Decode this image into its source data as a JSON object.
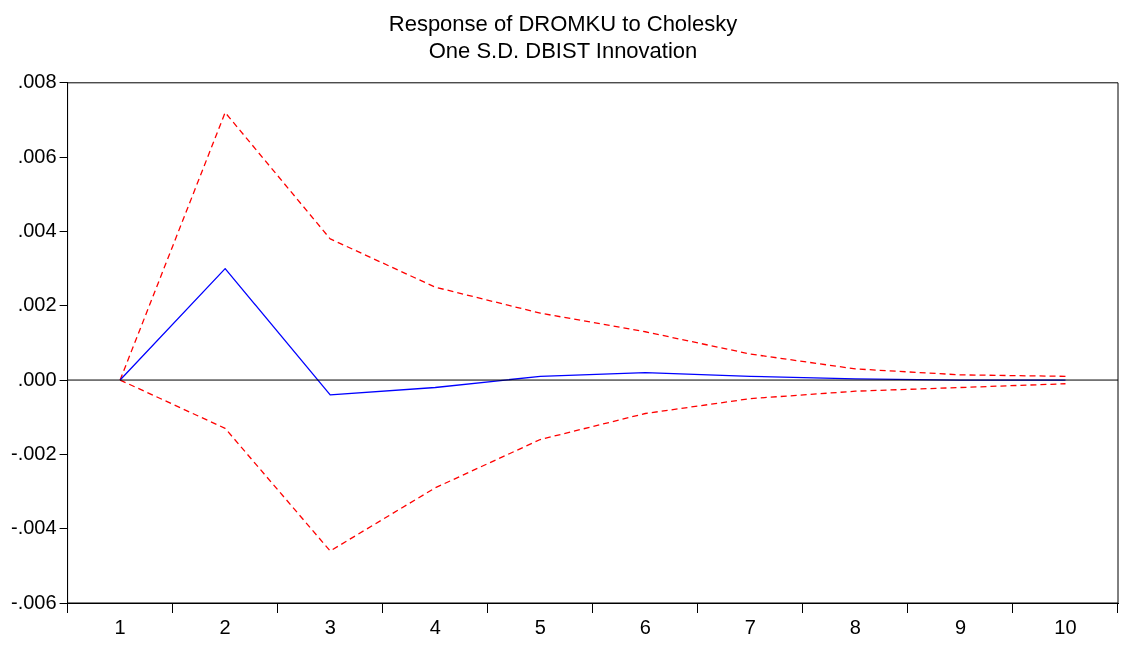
{
  "chart_data": {
    "type": "line",
    "title": "Response of DROMKU to Cholesky\nOne S.D. DBIST Innovation",
    "categories": [
      "1",
      "2",
      "3",
      "4",
      "5",
      "6",
      "7",
      "8",
      "9",
      "10"
    ],
    "series": [
      {
        "color": "#0000ff",
        "line_style": "solid",
        "values": [
          0,
          0.003,
          -0.0004,
          -0.0002,
          0.0001,
          0.0002,
          0.0001,
          3e-05,
          0,
          0
        ]
      },
      {
        "color": "#ff0000",
        "line_style": "dashed",
        "values": [
          0,
          0.0072,
          0.0038,
          0.0025,
          0.0018,
          0.0013,
          0.0007,
          0.0003,
          0.00014,
          0.0001
        ]
      },
      {
        "color": "#ff0000",
        "line_style": "dashed",
        "values": [
          0,
          -0.0013,
          -0.0046,
          -0.0029,
          -0.0016,
          -0.0009,
          -0.0005,
          -0.0003,
          -0.0002,
          -0.0001
        ]
      }
    ],
    "ylim": [
      -0.006,
      0.008
    ],
    "yticks": [
      {
        "value": -0.006,
        "label": "-.006"
      },
      {
        "value": -0.004,
        "label": "-.004"
      },
      {
        "value": -0.002,
        "label": "-.002"
      },
      {
        "value": 0,
        "label": ".000"
      },
      {
        "value": 0.002,
        "label": ".002"
      },
      {
        "value": 0.004,
        "label": ".004"
      },
      {
        "value": 0.006,
        "label": ".006"
      },
      {
        "value": 0.008,
        "label": ".008"
      }
    ],
    "ref_lines": [
      {
        "axis": "y",
        "value": 0,
        "color": "#000000"
      }
    ],
    "grid": false,
    "legend": false,
    "marker": "none"
  }
}
